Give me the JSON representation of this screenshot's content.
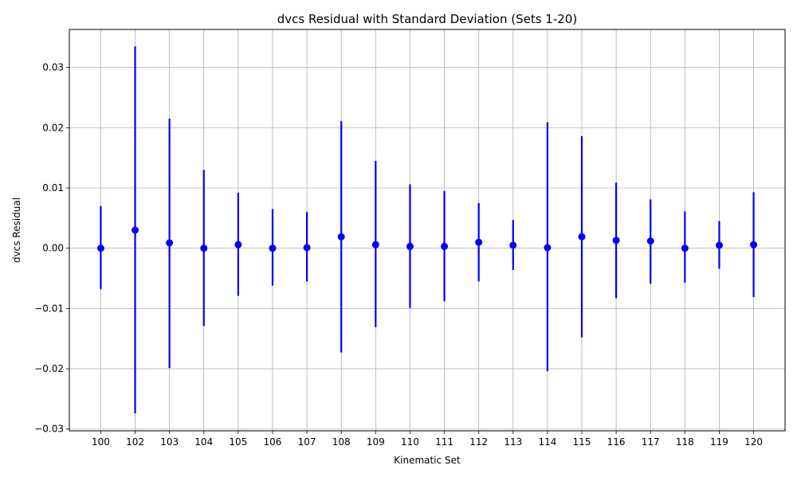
{
  "chart_data": {
    "type": "scatter",
    "title": "dvcs Residual with Standard Deviation (Sets 1-20)",
    "xlabel": "Kinematic Set",
    "ylabel": "dvcs Residual",
    "categories": [
      "100",
      "102",
      "103",
      "104",
      "105",
      "106",
      "107",
      "108",
      "109",
      "110",
      "111",
      "112",
      "113",
      "114",
      "115",
      "116",
      "117",
      "118",
      "119",
      "120"
    ],
    "ylim": [
      -0.0303,
      0.0363
    ],
    "yticks": [
      -0.03,
      -0.02,
      -0.01,
      0.0,
      0.01,
      0.02,
      0.03
    ],
    "ytick_labels": [
      "−0.03",
      "−0.02",
      "−0.01",
      "0.00",
      "0.01",
      "0.02",
      "0.03"
    ],
    "grid": true,
    "series": [
      {
        "values": [
          0.0,
          0.003,
          0.0009,
          0.0,
          0.0006,
          0.0,
          0.0001,
          0.0019,
          0.0006,
          0.0003,
          0.0003,
          0.001,
          0.0005,
          0.0001,
          0.0019,
          0.0013,
          0.0012,
          0.0,
          0.0005,
          0.0006
        ],
        "err_low": [
          -0.0068,
          -0.0274,
          -0.0199,
          -0.0129,
          -0.0079,
          -0.0062,
          -0.0055,
          -0.0173,
          -0.0131,
          -0.0099,
          -0.0088,
          -0.0055,
          -0.0036,
          -0.0204,
          -0.0148,
          -0.0083,
          -0.0059,
          -0.0057,
          -0.0034,
          -0.0081
        ],
        "err_high": [
          0.007,
          0.0335,
          0.0215,
          0.013,
          0.0092,
          0.0065,
          0.006,
          0.0211,
          0.0145,
          0.0106,
          0.0095,
          0.0075,
          0.0047,
          0.0209,
          0.0186,
          0.0109,
          0.0081,
          0.0061,
          0.0045,
          0.0093
        ],
        "color": "#0000ff"
      }
    ]
  }
}
